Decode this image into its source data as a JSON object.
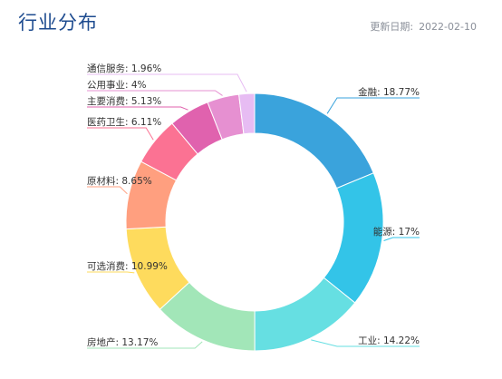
{
  "header": {
    "title": "行业分布",
    "update_label": "更新日期:",
    "update_date": "2022-02-10"
  },
  "chart_data": {
    "type": "pie",
    "variant": "donut",
    "title": "行业分布",
    "slices": [
      {
        "label": "金融",
        "value": 18.77,
        "text": "金融: 18.77%",
        "color": "#3aa3dc"
      },
      {
        "label": "能源",
        "value": 17,
        "text": "能源: 17%",
        "color": "#33c4e8"
      },
      {
        "label": "工业",
        "value": 14.22,
        "text": "工业: 14.22%",
        "color": "#66dfe2"
      },
      {
        "label": "房地产",
        "value": 13.17,
        "text": "房地产: 13.17%",
        "color": "#a2e6b8"
      },
      {
        "label": "可选消费",
        "value": 10.99,
        "text": "可选消费: 10.99%",
        "color": "#fedb5d"
      },
      {
        "label": "原材料",
        "value": 8.65,
        "text": "原材料: 8.65%",
        "color": "#ff9f7f"
      },
      {
        "label": "医药卫生",
        "value": 6.11,
        "text": "医药卫生: 6.11%",
        "color": "#fb7293"
      },
      {
        "label": "主要消费",
        "value": 5.13,
        "text": "主要消费: 5.13%",
        "color": "#e062ae"
      },
      {
        "label": "公用事业",
        "value": 4,
        "text": "公用事业: 4%",
        "color": "#e690d1"
      },
      {
        "label": "通信服务",
        "value": 1.96,
        "text": "通信服务: 1.96%",
        "color": "#e7bcf3"
      }
    ]
  }
}
